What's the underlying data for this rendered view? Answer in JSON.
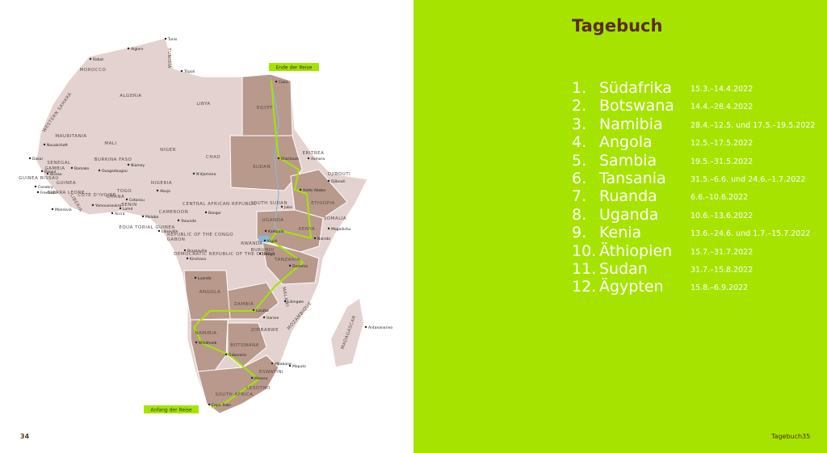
{
  "left_page": {
    "page_number": "34",
    "map": {
      "end_label": "Ende der Reise",
      "start_label": "Anfang der Reise",
      "countries": [
        "TUNISIA",
        "MOROCCO",
        "ALGERIA",
        "LIBYA",
        "EGYPT",
        "WESTERN SAHARA",
        "MAURITANIA",
        "MALI",
        "NIGER",
        "CHAD",
        "SUDAN",
        "ERITREA",
        "DJIBOUTI",
        "ETHIOPIA",
        "SOMALIA",
        "SOUTH SUDAN",
        "SENEGAL",
        "GAMBIA",
        "GUINEA BISSAU",
        "GUINEA",
        "SIERRA LEONE",
        "LIBERIA",
        "CÔTE D'IVOIRE",
        "BURKINA FASO",
        "GHANA",
        "TOGO",
        "BENIN",
        "NIGERIA",
        "CAMEROON",
        "CENTRAL AFRICAN REPUBLIC",
        "EQUA TORIAL GUINEA",
        "GABON",
        "REPUBLIC OF THE CONGO",
        "DEMOCRATIC REPUBLIC OF THE CONGO",
        "UGANDA",
        "KENYA",
        "RWANDA",
        "BURUNDI",
        "TANZANIA",
        "ANGOLA",
        "ZAMBIA",
        "MALAWI",
        "MOZAMBIQUE",
        "ZIMBABWE",
        "NAMIBIA",
        "BOTSWANA",
        "ESWATINI",
        "LESOTHO",
        "SOUTH AFRICA",
        "MADAGASCAR"
      ],
      "cities": [
        "Rabat",
        "Algiers",
        "Tunis",
        "Tripoli",
        "Cairo",
        "Nouakchott",
        "Dakar",
        "Banjul",
        "Bissau",
        "Conakry",
        "Freetown",
        "Monrovia",
        "Bamako",
        "Ouagadougou",
        "Niamey",
        "Yamoussoukro",
        "Accra",
        "Lomé",
        "Cotonou",
        "Abuja",
        "N'djamena",
        "Khartoum",
        "Asmara",
        "Djibouti",
        "Addis Ababa",
        "Juba",
        "Bangui",
        "Malabo",
        "Yaounde",
        "Libreville",
        "Brazzaville",
        "Kinshasa",
        "Kampala",
        "Nairobi",
        "Kigali",
        "Gitega",
        "Dodoma",
        "Mogadishu",
        "Luanda",
        "Lusaka",
        "Lilongwe",
        "Harare",
        "Maputo",
        "Mbabane",
        "Windhoek",
        "Gaborone",
        "Maseru",
        "Cape Town",
        "Antananarivo"
      ]
    }
  },
  "right_page": {
    "title": "Tagebuch",
    "entries": [
      {
        "number": "1.",
        "country": "Südafrika",
        "dates": "15.3.–14.4.2022"
      },
      {
        "number": "2.",
        "country": "Botswana",
        "dates": "14.4.–28.4.2022"
      },
      {
        "number": "3.",
        "country": "Namibia",
        "dates": "28.4.–12.5. und 17.5.–19.5.2022"
      },
      {
        "number": "4.",
        "country": "Angola",
        "dates": "12.5.–17.5.2022"
      },
      {
        "number": "5.",
        "country": "Sambia",
        "dates": "19.5.–31.5.2022"
      },
      {
        "number": "6.",
        "country": "Tansania",
        "dates": "31.5.–6.6. und 24.6.–1.7.2022"
      },
      {
        "number": "7.",
        "country": "Ruanda",
        "dates": "6.6.–10.6.2022"
      },
      {
        "number": "8.",
        "country": "Uganda",
        "dates": "10.6.–13.6.2022"
      },
      {
        "number": "9.",
        "country": "Kenia",
        "dates": "13.6.–24.6. und 1.7.–15.7.2022"
      },
      {
        "number": "10.",
        "country": "Äthiopien",
        "dates": "15.7.–31.7.2022"
      },
      {
        "number": "11.",
        "country": "Sudan",
        "dates": "31.7.–15.8.2022"
      },
      {
        "number": "12.",
        "country": "Ägypten",
        "dates": "15.8.–6.9.2022"
      }
    ],
    "footer_label": "Tagebuch",
    "page_number": "35"
  }
}
